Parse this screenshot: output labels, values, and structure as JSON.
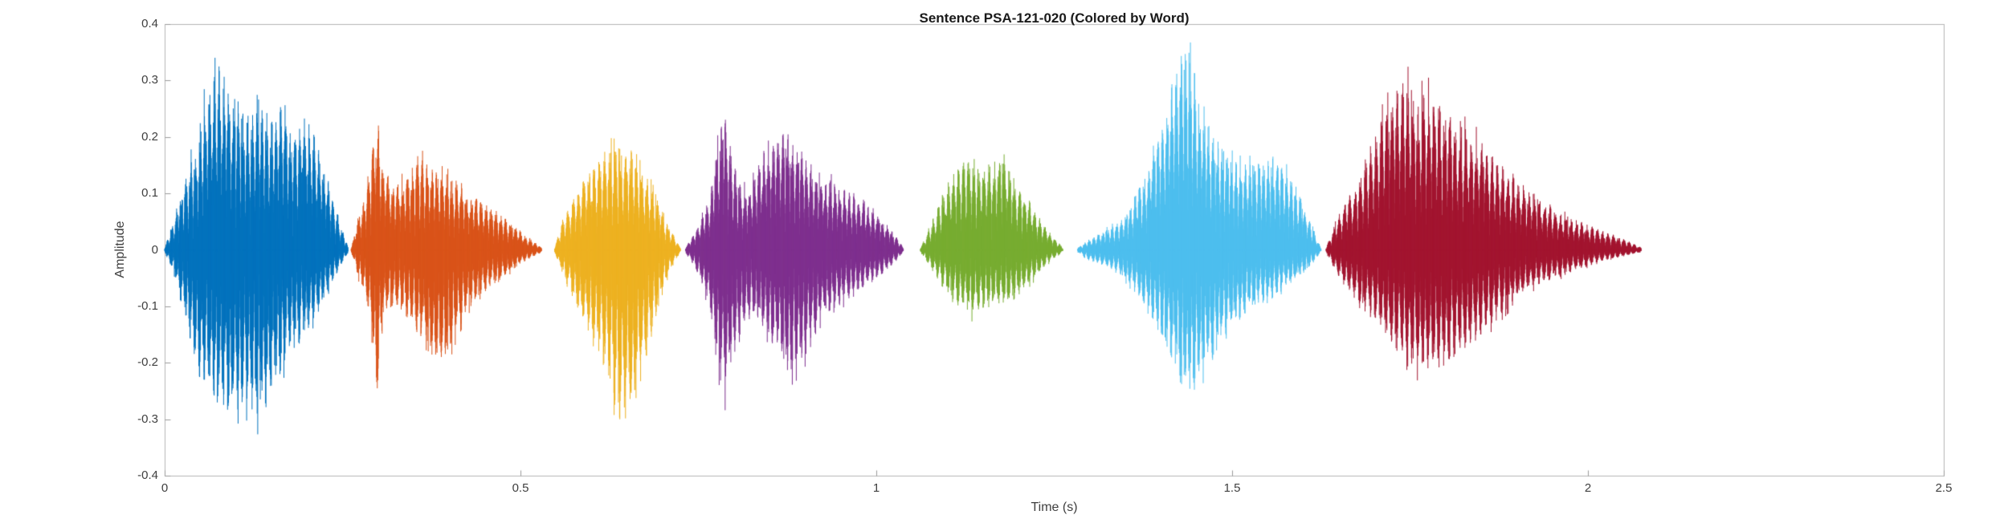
{
  "figure": {
    "background": "#ffffff"
  },
  "chart_data": {
    "type": "line",
    "subtype": "audio-waveform-colored-by-word",
    "title": "Sentence PSA-121-020 (Colored by Word)",
    "xlabel": "Time (s)",
    "ylabel": "Amplitude",
    "xlim": [
      0,
      2.5
    ],
    "ylim": [
      -0.4,
      0.4
    ],
    "grid": false,
    "box": true,
    "legend": "none",
    "box_color": "#b5b5b5",
    "tick_color": "#9a9a9a",
    "text_color": "#3f3f3f",
    "title_color": "#1a1a1a",
    "xticks": [
      {
        "v": 0,
        "label": "0"
      },
      {
        "v": 0.5,
        "label": "0.5"
      },
      {
        "v": 1,
        "label": "1"
      },
      {
        "v": 1.5,
        "label": "1.5"
      },
      {
        "v": 2,
        "label": "2"
      },
      {
        "v": 2.5,
        "label": "2.5"
      }
    ],
    "yticks": [
      {
        "v": -0.4,
        "label": "-0.4"
      },
      {
        "v": -0.3,
        "label": "-0.3"
      },
      {
        "v": -0.2,
        "label": "-0.2"
      },
      {
        "v": -0.1,
        "label": "-0.1"
      },
      {
        "v": 0,
        "label": "0"
      },
      {
        "v": 0.1,
        "label": "0.1"
      },
      {
        "v": 0.2,
        "label": "0.2"
      },
      {
        "v": 0.3,
        "label": "0.3"
      },
      {
        "v": 0.4,
        "label": "0.4"
      }
    ],
    "segments": [
      {
        "name": "word-1",
        "color": "#0072BD",
        "f0": 150,
        "seed": 11,
        "t_start": 0.0,
        "t_end": 0.258,
        "peak_pos": 0.33,
        "peak_neg": -0.31,
        "env": [
          [
            0.0,
            0.004,
            -0.004
          ],
          [
            0.012,
            0.05,
            -0.04
          ],
          [
            0.028,
            0.13,
            -0.12
          ],
          [
            0.045,
            0.2,
            -0.22
          ],
          [
            0.062,
            0.31,
            -0.26
          ],
          [
            0.078,
            0.33,
            -0.28
          ],
          [
            0.095,
            0.27,
            -0.3
          ],
          [
            0.112,
            0.24,
            -0.28
          ],
          [
            0.13,
            0.26,
            -0.31
          ],
          [
            0.148,
            0.24,
            -0.27
          ],
          [
            0.165,
            0.27,
            -0.22
          ],
          [
            0.182,
            0.21,
            -0.18
          ],
          [
            0.2,
            0.24,
            -0.15
          ],
          [
            0.218,
            0.18,
            -0.11
          ],
          [
            0.235,
            0.1,
            -0.06
          ],
          [
            0.258,
            0.004,
            -0.004
          ]
        ]
      },
      {
        "name": "word-2",
        "color": "#D95319",
        "f0": 145,
        "seed": 22,
        "t_start": 0.262,
        "t_end": 0.53,
        "peak_pos": 0.25,
        "peak_neg": -0.26,
        "env": [
          [
            0.262,
            0.004,
            -0.004
          ],
          [
            0.272,
            0.06,
            -0.05
          ],
          [
            0.285,
            0.12,
            -0.1
          ],
          [
            0.298,
            0.25,
            -0.26
          ],
          [
            0.308,
            0.15,
            -0.12
          ],
          [
            0.322,
            0.12,
            -0.1
          ],
          [
            0.338,
            0.13,
            -0.12
          ],
          [
            0.355,
            0.17,
            -0.15
          ],
          [
            0.372,
            0.16,
            -0.2
          ],
          [
            0.39,
            0.14,
            -0.22
          ],
          [
            0.408,
            0.13,
            -0.16
          ],
          [
            0.425,
            0.11,
            -0.11
          ],
          [
            0.445,
            0.09,
            -0.08
          ],
          [
            0.468,
            0.07,
            -0.06
          ],
          [
            0.495,
            0.04,
            -0.03
          ],
          [
            0.53,
            0.004,
            -0.004
          ]
        ]
      },
      {
        "name": "word-3",
        "color": "#EDB120",
        "f0": 135,
        "seed": 33,
        "t_start": 0.548,
        "t_end": 0.725,
        "peak_pos": 0.19,
        "peak_neg": -0.31,
        "env": [
          [
            0.548,
            0.004,
            -0.004
          ],
          [
            0.558,
            0.05,
            -0.04
          ],
          [
            0.572,
            0.09,
            -0.08
          ],
          [
            0.588,
            0.13,
            -0.13
          ],
          [
            0.605,
            0.16,
            -0.18
          ],
          [
            0.622,
            0.185,
            -0.24
          ],
          [
            0.638,
            0.19,
            -0.3
          ],
          [
            0.652,
            0.18,
            -0.31
          ],
          [
            0.665,
            0.17,
            -0.26
          ],
          [
            0.68,
            0.13,
            -0.18
          ],
          [
            0.695,
            0.08,
            -0.1
          ],
          [
            0.71,
            0.04,
            -0.04
          ],
          [
            0.725,
            0.004,
            -0.004
          ]
        ]
      },
      {
        "name": "word-4",
        "color": "#7E2F8E",
        "f0": 150,
        "seed": 44,
        "t_start": 0.732,
        "t_end": 1.038,
        "peak_pos": 0.26,
        "peak_neg": -0.27,
        "env": [
          [
            0.732,
            0.004,
            -0.004
          ],
          [
            0.748,
            0.04,
            -0.04
          ],
          [
            0.765,
            0.09,
            -0.1
          ],
          [
            0.778,
            0.2,
            -0.22
          ],
          [
            0.788,
            0.26,
            -0.27
          ],
          [
            0.798,
            0.16,
            -0.22
          ],
          [
            0.812,
            0.11,
            -0.14
          ],
          [
            0.828,
            0.13,
            -0.12
          ],
          [
            0.845,
            0.19,
            -0.15
          ],
          [
            0.862,
            0.22,
            -0.19
          ],
          [
            0.878,
            0.21,
            -0.23
          ],
          [
            0.895,
            0.18,
            -0.21
          ],
          [
            0.912,
            0.15,
            -0.16
          ],
          [
            0.93,
            0.13,
            -0.12
          ],
          [
            0.95,
            0.12,
            -0.1
          ],
          [
            0.97,
            0.1,
            -0.08
          ],
          [
            0.992,
            0.08,
            -0.06
          ],
          [
            1.015,
            0.05,
            -0.04
          ],
          [
            1.038,
            0.004,
            -0.004
          ]
        ]
      },
      {
        "name": "word-5",
        "color": "#77AC30",
        "f0": 140,
        "seed": 55,
        "t_start": 1.062,
        "t_end": 1.262,
        "peak_pos": 0.17,
        "peak_neg": -0.12,
        "env": [
          [
            1.062,
            0.004,
            -0.004
          ],
          [
            1.075,
            0.04,
            -0.03
          ],
          [
            1.09,
            0.09,
            -0.06
          ],
          [
            1.105,
            0.13,
            -0.09
          ],
          [
            1.12,
            0.16,
            -0.11
          ],
          [
            1.135,
            0.17,
            -0.12
          ],
          [
            1.15,
            0.155,
            -0.11
          ],
          [
            1.165,
            0.165,
            -0.1
          ],
          [
            1.18,
            0.17,
            -0.105
          ],
          [
            1.195,
            0.13,
            -0.09
          ],
          [
            1.21,
            0.1,
            -0.07
          ],
          [
            1.228,
            0.06,
            -0.045
          ],
          [
            1.245,
            0.03,
            -0.02
          ],
          [
            1.262,
            0.004,
            -0.004
          ]
        ]
      },
      {
        "name": "word-6",
        "color": "#4DBEEE",
        "f0": 155,
        "seed": 66,
        "t_start": 1.283,
        "t_end": 1.625,
        "peak_pos": 0.39,
        "peak_neg": -0.26,
        "env": [
          [
            1.283,
            0.004,
            -0.004
          ],
          [
            1.3,
            0.02,
            -0.02
          ],
          [
            1.32,
            0.035,
            -0.03
          ],
          [
            1.34,
            0.05,
            -0.04
          ],
          [
            1.36,
            0.09,
            -0.07
          ],
          [
            1.38,
            0.15,
            -0.11
          ],
          [
            1.4,
            0.23,
            -0.16
          ],
          [
            1.418,
            0.31,
            -0.21
          ],
          [
            1.432,
            0.39,
            -0.25
          ],
          [
            1.445,
            0.33,
            -0.26
          ],
          [
            1.46,
            0.26,
            -0.23
          ],
          [
            1.478,
            0.2,
            -0.19
          ],
          [
            1.495,
            0.17,
            -0.15
          ],
          [
            1.515,
            0.155,
            -0.12
          ],
          [
            1.535,
            0.16,
            -0.1
          ],
          [
            1.555,
            0.17,
            -0.09
          ],
          [
            1.575,
            0.15,
            -0.07
          ],
          [
            1.595,
            0.1,
            -0.05
          ],
          [
            1.61,
            0.05,
            -0.03
          ],
          [
            1.625,
            0.004,
            -0.004
          ]
        ]
      },
      {
        "name": "word-7",
        "color": "#A2142F",
        "f0": 135,
        "seed": 77,
        "t_start": 1.632,
        "t_end": 2.075,
        "peak_pos": 0.31,
        "peak_neg": -0.22,
        "env": [
          [
            1.632,
            0.004,
            -0.004
          ],
          [
            1.645,
            0.05,
            -0.04
          ],
          [
            1.66,
            0.09,
            -0.07
          ],
          [
            1.675,
            0.12,
            -0.09
          ],
          [
            1.692,
            0.18,
            -0.12
          ],
          [
            1.71,
            0.24,
            -0.15
          ],
          [
            1.728,
            0.29,
            -0.18
          ],
          [
            1.745,
            0.31,
            -0.2
          ],
          [
            1.762,
            0.28,
            -0.22
          ],
          [
            1.78,
            0.29,
            -0.22
          ],
          [
            1.8,
            0.26,
            -0.21
          ],
          [
            1.82,
            0.23,
            -0.19
          ],
          [
            1.84,
            0.21,
            -0.17
          ],
          [
            1.862,
            0.18,
            -0.14
          ],
          [
            1.885,
            0.15,
            -0.11
          ],
          [
            1.91,
            0.12,
            -0.08
          ],
          [
            1.935,
            0.09,
            -0.06
          ],
          [
            1.96,
            0.07,
            -0.05
          ],
          [
            1.99,
            0.05,
            -0.035
          ],
          [
            2.02,
            0.035,
            -0.02
          ],
          [
            2.05,
            0.02,
            -0.012
          ],
          [
            2.075,
            0.004,
            -0.004
          ]
        ]
      }
    ]
  }
}
